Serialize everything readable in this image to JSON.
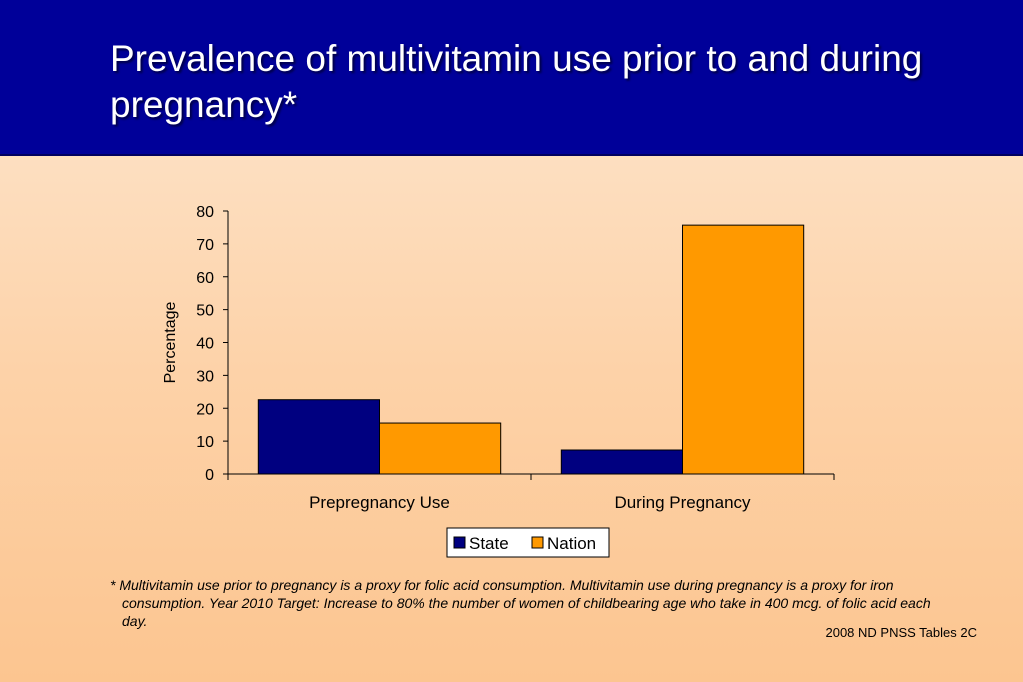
{
  "header": {
    "title": "Prevalence of multivitamin use prior to and during pregnancy*",
    "background_color": "#000099"
  },
  "chart_data": {
    "type": "bar",
    "categories": [
      "Prepregnancy Use",
      "During Pregnancy"
    ],
    "series": [
      {
        "name": "State",
        "values": [
          22.6,
          7.3
        ],
        "color": "#000080"
      },
      {
        "name": "Nation",
        "values": [
          15.5,
          75.7
        ],
        "color": "#ff9900"
      }
    ],
    "title": "",
    "xlabel": "",
    "ylabel": "Percentage",
    "ylim": [
      0,
      80
    ],
    "yticks": [
      0,
      10,
      20,
      30,
      40,
      50,
      60,
      70,
      80
    ],
    "grid": false,
    "legend_position": "bottom-center"
  },
  "footnote": "*  Multivitamin use prior to pregnancy is a proxy for folic acid consumption.  Multivitamin use during pregnancy is a proxy for iron consumption.  Year 2010 Target: Increase to 80% the number of women of childbearing age who take in 400 mcg. of folic acid each day.",
  "source": "2008 ND PNSS Tables 2C"
}
